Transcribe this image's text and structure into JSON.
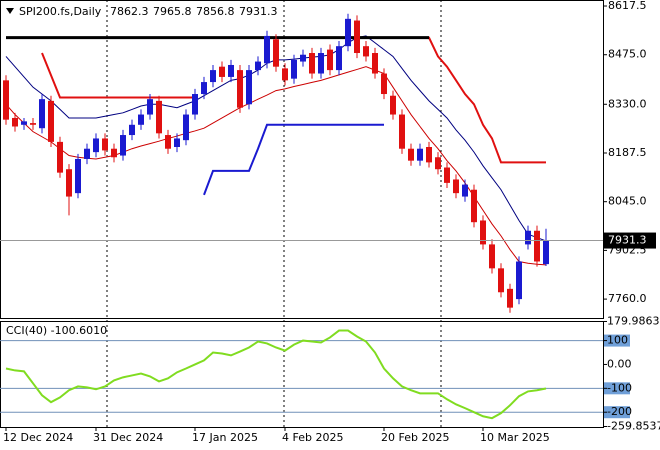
{
  "chart_data": {
    "type": "candlestick",
    "title": "SPI200.fs,Daily",
    "up_color": "#1a1ad0",
    "down_color": "#e01010",
    "categories": [
      "12 Dec 2024",
      null,
      null,
      null,
      null,
      null,
      null,
      null,
      null,
      null,
      "31 Dec 2024",
      null,
      null,
      null,
      null,
      null,
      null,
      null,
      null,
      null,
      null,
      "17 Jan 2025",
      null,
      null,
      null,
      null,
      null,
      null,
      null,
      null,
      null,
      "4 Feb 2025",
      null,
      null,
      null,
      null,
      null,
      null,
      null,
      null,
      null,
      null,
      "20 Feb 2025",
      null,
      null,
      null,
      null,
      null,
      null,
      null,
      null,
      null,
      null,
      "10 Mar 2025",
      null,
      null,
      null,
      null,
      null,
      null,
      null
    ],
    "open": [
      8400,
      8290,
      8270,
      8275,
      8260,
      8340,
      8220,
      8140,
      8070,
      8170,
      8190,
      8230,
      8200,
      8180,
      8240,
      8270,
      8300,
      8340,
      8240,
      8205,
      8225,
      8300,
      8360,
      8395,
      8440,
      8410,
      8430,
      8330,
      8430,
      8450,
      8520,
      8435,
      8405,
      8455,
      8480,
      8420,
      8490,
      8430,
      8500,
      8575,
      8500,
      8480,
      8420,
      8355,
      8300,
      8200,
      8165,
      8205,
      8175,
      8145,
      8110,
      8060,
      8080,
      7990,
      7920,
      7850,
      7790,
      7760,
      7920,
      7960,
      7862.3
    ],
    "high": [
      8415,
      8305,
      8290,
      8290,
      8360,
      8355,
      8235,
      8155,
      8185,
      8215,
      8245,
      8245,
      8215,
      8255,
      8285,
      8315,
      8360,
      8355,
      8255,
      8245,
      8315,
      8375,
      8410,
      8445,
      8455,
      8460,
      8445,
      8445,
      8470,
      8545,
      8535,
      8450,
      8475,
      8490,
      8495,
      8495,
      8505,
      8515,
      8595,
      8590,
      8515,
      8495,
      8435,
      8370,
      8315,
      8215,
      8215,
      8220,
      8190,
      8160,
      8125,
      8110,
      8095,
      8005,
      7935,
      7865,
      7805,
      7885,
      7975,
      7975,
      7965.8
    ],
    "low": [
      8270,
      8250,
      8255,
      8255,
      8245,
      8205,
      8115,
      8005,
      8055,
      8155,
      8175,
      8180,
      8160,
      8165,
      8225,
      8255,
      8285,
      8230,
      8185,
      8190,
      8210,
      8285,
      8345,
      8380,
      8395,
      8395,
      8305,
      8315,
      8415,
      8435,
      8425,
      8385,
      8390,
      8440,
      8405,
      8405,
      8415,
      8415,
      8485,
      8465,
      8455,
      8405,
      8345,
      8285,
      8185,
      8150,
      8150,
      8145,
      8125,
      8085,
      8055,
      8045,
      7970,
      7905,
      7835,
      7765,
      7720,
      7745,
      7905,
      7855,
      7856.8
    ],
    "close": [
      8285,
      8265,
      8280,
      8270,
      8345,
      8220,
      8130,
      8060,
      8170,
      8200,
      8230,
      8195,
      8175,
      8240,
      8270,
      8300,
      8345,
      8245,
      8200,
      8230,
      8300,
      8360,
      8395,
      8430,
      8410,
      8445,
      8320,
      8430,
      8455,
      8530,
      8440,
      8400,
      8460,
      8475,
      8420,
      8480,
      8430,
      8500,
      8580,
      8480,
      8470,
      8420,
      8360,
      8300,
      8200,
      8165,
      8200,
      8160,
      8140,
      8100,
      8070,
      8095,
      7985,
      7920,
      7850,
      7780,
      7735,
      7870,
      7960,
      7870,
      7931.3
    ],
    "overlays": [
      {
        "color": "#000080",
        "width": 1,
        "values": [
          8470,
          8440,
          8410,
          8380,
          8360,
          8340,
          8315,
          8290,
          8290,
          8290,
          8290,
          8295,
          8300,
          8305,
          8315,
          8325,
          8330,
          8330,
          8325,
          8320,
          8330,
          8340,
          8355,
          8370,
          8385,
          8400,
          8405,
          8415,
          8430,
          8450,
          8460,
          8460,
          8462,
          8465,
          8468,
          8470,
          8475,
          8490,
          8510,
          8525,
          8530,
          8510,
          8490,
          8470,
          8435,
          8400,
          8370,
          8340,
          8315,
          8290,
          8255,
          8225,
          8190,
          8150,
          8115,
          8080,
          8035,
          7990,
          7950,
          7940,
          7930
        ]
      },
      {
        "color": "#cc0000",
        "width": 1,
        "values": [
          8330,
          8300,
          8275,
          8250,
          8235,
          8220,
          8200,
          8180,
          8175,
          8172,
          8170,
          8175,
          8180,
          8190,
          8200,
          8208,
          8215,
          8222,
          8230,
          8237,
          8245,
          8252,
          8260,
          8275,
          8290,
          8305,
          8320,
          8332,
          8345,
          8357,
          8370,
          8375,
          8382,
          8388,
          8394,
          8400,
          8408,
          8416,
          8424,
          8432,
          8440,
          8430,
          8420,
          8380,
          8340,
          8300,
          8265,
          8230,
          8200,
          8165,
          8135,
          8100,
          8060,
          8020,
          7980,
          7945,
          7905,
          7870,
          7865,
          7862,
          7860
        ]
      },
      {
        "color": "#e01010",
        "width": 2,
        "values": [
          null,
          null,
          null,
          null,
          8480,
          8415,
          8350,
          8350,
          8350,
          8350,
          8350,
          8350,
          8350,
          8350,
          8350,
          8350,
          8350,
          8350,
          8350,
          8350,
          8350,
          8350,
          null,
          null,
          null,
          null,
          null,
          null,
          null,
          null,
          null,
          null,
          null,
          null,
          null,
          null,
          null,
          null,
          null,
          null,
          null,
          null,
          null,
          null,
          8525,
          8525,
          8525,
          8525,
          8470,
          8440,
          8400,
          8360,
          8330,
          8270,
          8230,
          8160,
          8160,
          8160,
          8160,
          8160,
          8160
        ]
      },
      {
        "color": "#1a1ad0",
        "width": 2,
        "values": [
          null,
          null,
          null,
          null,
          null,
          null,
          null,
          null,
          null,
          null,
          null,
          null,
          null,
          null,
          null,
          null,
          null,
          null,
          null,
          null,
          null,
          null,
          8065,
          8135,
          8135,
          8135,
          8135,
          8135,
          8200,
          8270,
          8270,
          8270,
          8270,
          8270,
          8270,
          8270,
          8270,
          8270,
          8270,
          8270,
          8270,
          8270,
          8270,
          null,
          null,
          null,
          null,
          null,
          null,
          null,
          null,
          null,
          null,
          null,
          null,
          null,
          null,
          null,
          null,
          null,
          null
        ]
      },
      {
        "color": "#000000",
        "width": 3,
        "values": [
          8525,
          8525,
          8525,
          8525,
          8525,
          8525,
          8525,
          8525,
          8525,
          8525,
          8525,
          8525,
          8525,
          8525,
          8525,
          8525,
          8525,
          8525,
          8525,
          8525,
          8525,
          8525,
          8525,
          8525,
          8525,
          8525,
          8525,
          8525,
          8525,
          8525,
          8525,
          8525,
          8525,
          8525,
          8525,
          8525,
          8525,
          8525,
          8525,
          8525,
          8525,
          8525,
          8525,
          8525,
          8525,
          8525,
          8525,
          8525,
          null,
          null,
          null,
          null,
          null,
          null,
          null,
          null,
          null,
          null,
          null,
          null,
          null
        ]
      }
    ],
    "ylim": [
      7704.7,
      8635.1
    ],
    "yticks": [
      {
        "value": 8617.5,
        "label": "8617.5"
      },
      {
        "value": 8475,
        "label": "8475.0"
      },
      {
        "value": 8330,
        "label": "8330.0"
      },
      {
        "value": 8187.5,
        "label": "8187.5"
      },
      {
        "value": 8045,
        "label": "8045.0"
      },
      {
        "value": 7902.5,
        "label": "7902.5"
      },
      {
        "value": 7760,
        "label": "7760.0"
      }
    ],
    "indicator": {
      "label": "CCI(40) -100.6010",
      "color": "#80dc20",
      "level_color": "#7090b8",
      "values": [
        -17,
        -25,
        -29,
        -79,
        -129,
        -158,
        -138,
        -108,
        -92,
        -96,
        -104,
        -92,
        -67,
        -54,
        -46,
        -38,
        -50,
        -71,
        -58,
        -33,
        -17,
        0,
        17,
        50,
        46,
        38,
        54,
        71,
        96,
        88,
        71,
        58,
        83,
        100,
        96,
        92,
        113,
        142,
        142,
        117,
        96,
        50,
        -17,
        -58,
        -92,
        -108,
        -121,
        -121,
        -121,
        -146,
        -167,
        -183,
        -200,
        -217,
        -225,
        -204,
        -171,
        -133,
        -113,
        -108,
        -100.601
      ],
      "ylim": [
        -262,
        182
      ],
      "yticks": [
        179.9863,
        100,
        {
          "value": 0,
          "label": "0.00"
        },
        -100,
        -200,
        -259.8537
      ],
      "levels": [
        100,
        -100,
        -200
      ]
    }
  }
}
